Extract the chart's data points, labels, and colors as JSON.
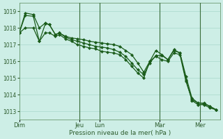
{
  "background_color": "#cdeee6",
  "plot_bg_color": "#cdeee6",
  "line_color": "#1a5c1a",
  "marker_color": "#1a5c1a",
  "grid_color": "#a8d8cc",
  "xlabel": "Pression niveau de la mer( hPa )",
  "ylim": [
    1012.5,
    1019.5
  ],
  "yticks": [
    1013,
    1014,
    1015,
    1016,
    1017,
    1018,
    1019
  ],
  "day_labels": [
    "Dim",
    "Jeu",
    "Lun",
    "Mar",
    "Mer"
  ],
  "day_x": [
    0,
    3.0,
    4.0,
    7.0,
    9.0
  ],
  "xlim": [
    0,
    10.0
  ],
  "series": [
    {
      "x": [
        0.0,
        0.3,
        0.7,
        1.0,
        1.3,
        1.5,
        1.8,
        2.0,
        2.3,
        2.6,
        2.9,
        3.2,
        3.5,
        3.8,
        4.1,
        4.4,
        4.7,
        5.0,
        5.3,
        5.6,
        5.9,
        6.2,
        6.5,
        6.8,
        7.1,
        7.4,
        7.7,
        8.0,
        8.3,
        8.6,
        8.9,
        9.2,
        9.5,
        9.8
      ],
      "y": [
        1017.7,
        1018.9,
        1018.8,
        1018.0,
        1018.3,
        1018.2,
        1017.6,
        1017.7,
        1017.5,
        1017.4,
        1017.35,
        1017.3,
        1017.2,
        1017.15,
        1017.1,
        1017.05,
        1017.0,
        1016.9,
        1016.65,
        1016.4,
        1015.9,
        1015.35,
        1016.0,
        1016.65,
        1016.4,
        1016.1,
        1016.7,
        1016.5,
        1015.1,
        1013.8,
        1013.5,
        1013.5,
        1013.3,
        1013.1
      ]
    },
    {
      "x": [
        0.0,
        0.3,
        0.7,
        1.0,
        1.3,
        1.5,
        1.8,
        2.0,
        2.3,
        2.6,
        2.9,
        3.2,
        3.5,
        3.8,
        4.1,
        4.4,
        4.7,
        5.0,
        5.3,
        5.6,
        5.9,
        6.2,
        6.5,
        6.8,
        7.1,
        7.4,
        7.7,
        8.0,
        8.3,
        8.6,
        8.9,
        9.2,
        9.5,
        9.8
      ],
      "y": [
        1017.7,
        1018.75,
        1018.7,
        1017.2,
        1018.25,
        1018.2,
        1017.6,
        1017.7,
        1017.45,
        1017.3,
        1017.2,
        1017.1,
        1017.0,
        1016.9,
        1016.85,
        1016.8,
        1016.7,
        1016.55,
        1016.3,
        1015.9,
        1015.5,
        1015.2,
        1015.9,
        1016.35,
        1016.35,
        1016.1,
        1016.65,
        1016.5,
        1014.9,
        1013.65,
        1013.4,
        1013.4,
        1013.2,
        1013.1
      ]
    },
    {
      "x": [
        0.0,
        0.3,
        0.7,
        1.0,
        1.3,
        1.5,
        1.8,
        2.0,
        2.3,
        2.6,
        2.9,
        3.2,
        3.5,
        3.8,
        4.1,
        4.4,
        4.7,
        5.0,
        5.3,
        5.6,
        5.9,
        6.2,
        6.5,
        6.8,
        7.1,
        7.4,
        7.7,
        8.0,
        8.3,
        8.6,
        8.9,
        9.2,
        9.5,
        9.8
      ],
      "y": [
        1017.7,
        1018.0,
        1018.0,
        1017.2,
        1017.7,
        1017.7,
        1017.5,
        1017.6,
        1017.35,
        1017.2,
        1017.0,
        1016.9,
        1016.8,
        1016.75,
        1016.6,
        1016.55,
        1016.5,
        1016.4,
        1016.1,
        1015.7,
        1015.3,
        1015.0,
        1016.0,
        1016.3,
        1016.1,
        1016.0,
        1016.5,
        1016.4,
        1014.8,
        1013.7,
        1013.5,
        1013.45,
        1013.3,
        1013.1
      ]
    }
  ],
  "vlines": [
    3.0,
    4.0,
    7.0,
    9.0
  ]
}
